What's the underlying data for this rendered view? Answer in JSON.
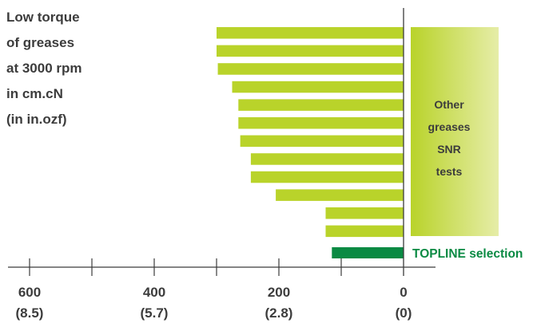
{
  "chart_data": {
    "type": "bar",
    "orientation": "horizontal",
    "title_lines": [
      "Low  torque",
      "of greases",
      "at 3000 rpm",
      "in cm.cN",
      "(in in.ozf)"
    ],
    "x_ticks": [
      {
        "value": 600,
        "label": "600",
        "sublabel": "(8.5)"
      },
      {
        "value": 400,
        "label": "400",
        "sublabel": "(5.7)"
      },
      {
        "value": 200,
        "label": "200",
        "sublabel": "(2.8)"
      },
      {
        "value": 0,
        "label": "0",
        "sublabel": "(0)"
      }
    ],
    "x_minor_ticks": [
      500,
      300,
      100
    ],
    "xlim": [
      0,
      650
    ],
    "x_reversed": true,
    "series": [
      {
        "values": [
          300,
          300,
          298,
          275,
          265,
          265,
          262,
          245,
          245,
          205,
          125,
          125
        ],
        "color": "#b9d32a"
      },
      {
        "name": "TOPLINE selection",
        "values": [
          115
        ],
        "color": "#0a8a43"
      }
    ],
    "panel_lines": [
      "Other",
      "greases",
      "SNR",
      "tests"
    ],
    "panel_colors": [
      "#b9d32a",
      "#e6eda8"
    ],
    "topline_label": "TOPLINE selection",
    "topline_color": "#0a8a43",
    "axis_color": "#3c3c3c",
    "grid": false
  }
}
